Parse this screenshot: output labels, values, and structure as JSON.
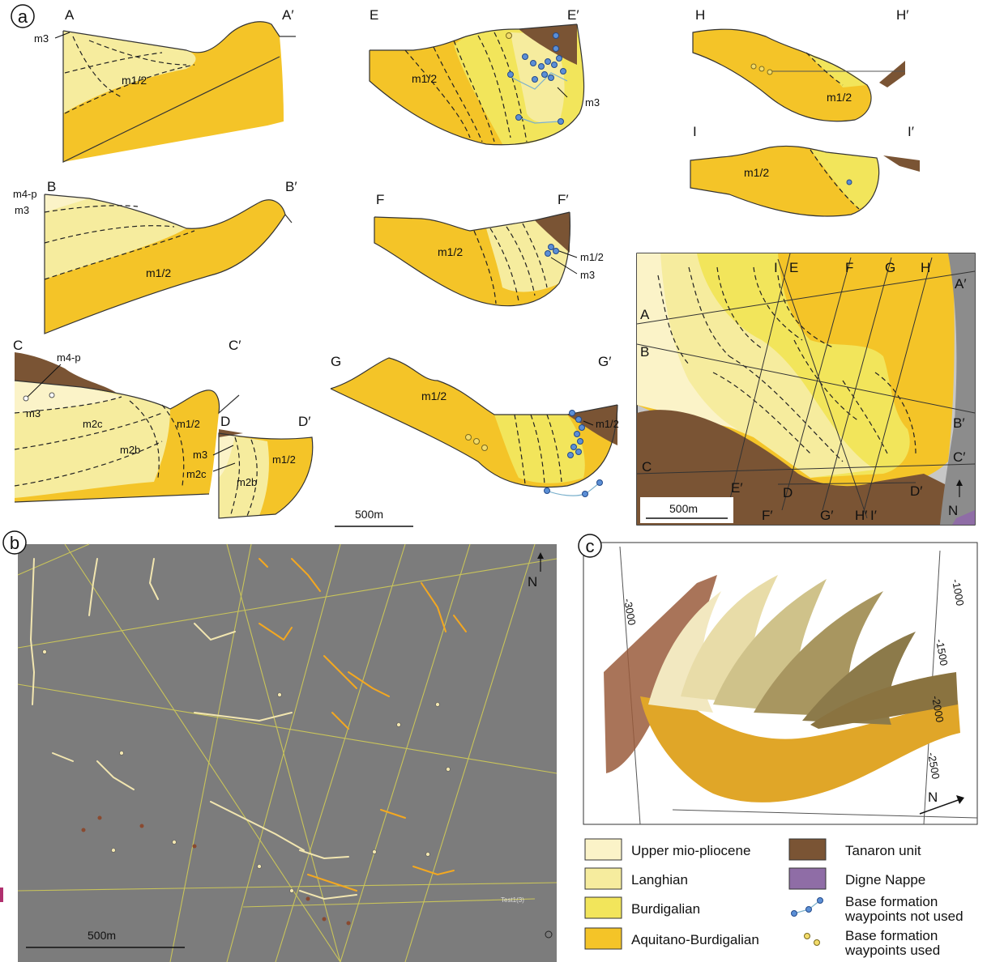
{
  "panel_a": {
    "letter": "a",
    "sections": {
      "A": {
        "left": "A",
        "right": "A′",
        "units": [
          "m3",
          "m1/2"
        ]
      },
      "B": {
        "left": "B",
        "right": "B′",
        "units": [
          "m4-p",
          "m3",
          "m1/2"
        ]
      },
      "C": {
        "left": "C",
        "right": "C′",
        "units": [
          "m4-p",
          "m3",
          "m2c",
          "m2b",
          "m1/2"
        ]
      },
      "D": {
        "left": "D",
        "right": "D′",
        "units": [
          "m3",
          "m2c",
          "m2b",
          "m1/2"
        ]
      },
      "E": {
        "left": "E",
        "right": "E′",
        "units": [
          "m1/2",
          "m3"
        ]
      },
      "F": {
        "left": "F",
        "right": "F′",
        "units": [
          "m1/2",
          "m1/2",
          "m3"
        ]
      },
      "G": {
        "left": "G",
        "right": "G′",
        "units": [
          "m1/2",
          "m1/2"
        ]
      },
      "H": {
        "left": "H",
        "right": "H′",
        "units": [
          "m1/2"
        ]
      },
      "I": {
        "left": "I",
        "right": "I′",
        "units": [
          "m1/2"
        ]
      }
    },
    "scale_label": "500m",
    "map": {
      "top_labels": [
        "I",
        "E",
        "F",
        "G",
        "H"
      ],
      "right_labels": [
        "A′",
        "B′",
        "C′",
        "D′"
      ],
      "left_labels": [
        "A",
        "B",
        "C"
      ],
      "bottom_labels": [
        "E′",
        "D",
        "F′",
        "G′",
        "H′",
        "I′"
      ],
      "scale_label": "500m",
      "north": "N"
    }
  },
  "panel_b": {
    "letter": "b",
    "scale_label": "500m",
    "north": "N",
    "line_tag": "Test1(3)"
  },
  "panel_c": {
    "letter": "c",
    "north": "N",
    "axis_labels": [
      "-1000",
      "-1500",
      "-2000",
      "-2500",
      "-3000"
    ]
  },
  "legend": {
    "items": [
      {
        "label": "Upper mio-pliocene",
        "color": "#fbf3c8"
      },
      {
        "label": "Langhian",
        "color": "#f6ec9e"
      },
      {
        "label": "Burdigalian",
        "color": "#f2e55b"
      },
      {
        "label": "Aquitano-Burdigalian",
        "color": "#f4c428"
      },
      {
        "label": "Tanaron unit",
        "color": "#7a5434"
      },
      {
        "label": "Digne Nappe",
        "color": "#8f6da6"
      },
      {
        "label": "Base formation",
        "label2": "waypoints not used"
      },
      {
        "label": "Base formation",
        "label2": "waypoints used"
      }
    ]
  }
}
